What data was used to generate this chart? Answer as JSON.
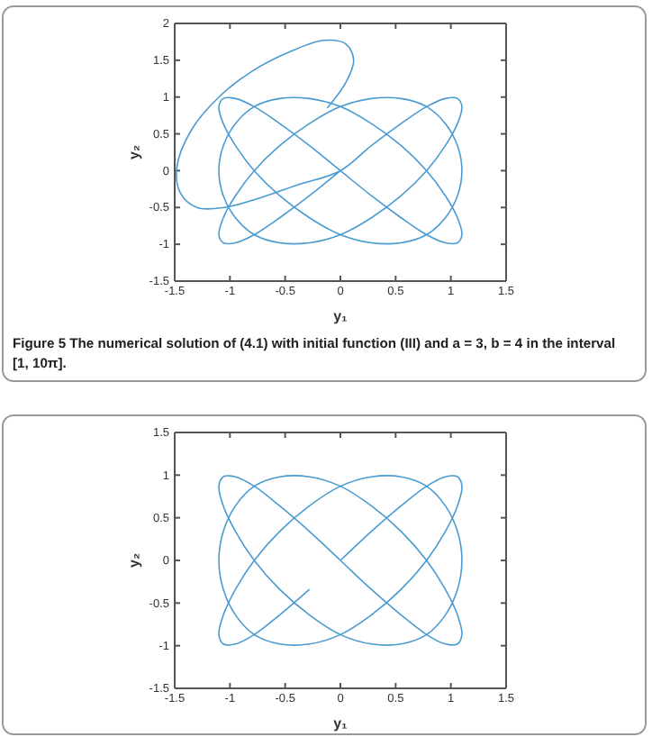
{
  "chart_data": [
    {
      "type": "line",
      "title": "Figure 5  The numerical solution of (4.1) with initial function (III) and a = 3, b = 4 in the interval [1, 10π].",
      "xlabel": "y₁",
      "ylabel": "y₂",
      "xlim": [
        -1.5,
        1.5
      ],
      "ylim": [
        -1.5,
        2
      ],
      "xticks": [
        -1.5,
        -1,
        -0.5,
        0,
        0.5,
        1,
        1.5
      ],
      "yticks": [
        -1.5,
        -1,
        -0.5,
        0,
        0.5,
        1,
        1.5,
        2
      ],
      "grid": false,
      "series": [
        {
          "color": "#4a9bd1",
          "x": [
            -0.12,
            0.05,
            0.12,
            0.05,
            -0.15,
            -0.45,
            -0.8,
            -1.1,
            -1.35,
            -1.48,
            -1.45,
            -1.3,
            -1.05,
            -0.75,
            -0.4,
            0,
            0.28,
            0.55,
            0.78,
            0.95,
            1.06,
            1.1,
            1.06,
            0.95,
            0.78,
            0.55,
            0.28,
            0,
            -0.28,
            -0.55,
            -0.78,
            -0.95,
            -1.06,
            -1.1,
            -1.06,
            -0.95,
            -0.78,
            -0.55,
            -0.28,
            0,
            0.28,
            0.55,
            0.78,
            0.95,
            1.06,
            1.1,
            1.06,
            0.95,
            0.78,
            0.55,
            0.28,
            0,
            -0.28,
            -0.55,
            -0.78,
            -0.95,
            -1.06,
            -1.1,
            -1.06,
            -0.95,
            -0.78,
            -0.55,
            -0.28,
            0,
            0.28,
            0.55,
            0.78,
            0.95,
            1.06,
            1.1,
            1.06,
            0.95,
            0.78,
            0.55,
            0.28,
            0,
            -0.28,
            -0.55,
            -0.78,
            -0.95,
            -1.06,
            -1.1,
            -1.06,
            -0.95,
            -0.78,
            -0.55,
            -0.28,
            0
          ],
          "values": [
            0.85,
            1.2,
            1.5,
            1.72,
            1.77,
            1.62,
            1.35,
            1.0,
            0.55,
            0.05,
            -0.3,
            -0.5,
            -0.5,
            -0.38,
            -0.2,
            0,
            0.34,
            0.64,
            0.87,
            0.98,
            0.98,
            0.87,
            0.64,
            0.34,
            0,
            -0.34,
            -0.64,
            -0.87,
            -0.98,
            -0.98,
            -0.87,
            -0.64,
            -0.34,
            0,
            0.34,
            0.64,
            0.87,
            0.98,
            0.98,
            0.87,
            0.64,
            0.34,
            0,
            -0.34,
            -0.64,
            -0.87,
            -0.98,
            -0.98,
            -0.87,
            -0.64,
            -0.34,
            0,
            0.34,
            0.64,
            0.87,
            0.98,
            0.98,
            0.87,
            0.64,
            0.34,
            0,
            -0.34,
            -0.64,
            -0.87,
            -0.98,
            -0.98,
            -0.87,
            -0.64,
            -0.34,
            0,
            0.34,
            0.64,
            0.87,
            0.98,
            0.98,
            0.87,
            0.64,
            0.34,
            0,
            -0.34,
            -0.64,
            -0.87,
            -0.98,
            -0.98,
            -0.87,
            -0.64,
            -0.34,
            0
          ]
        }
      ]
    },
    {
      "type": "line",
      "xlabel": "y₁",
      "ylabel": "y₂",
      "xlim": [
        -1.5,
        1.5
      ],
      "ylim": [
        -1.5,
        1.5
      ],
      "xticks": [
        -1.5,
        -1,
        -0.5,
        0,
        0.5,
        1,
        1.5
      ],
      "yticks": [
        -1.5,
        -1,
        -0.5,
        0,
        0.5,
        1,
        1.5
      ],
      "grid": false,
      "series": [
        {
          "color": "#4a9bd1",
          "x": [
            0,
            0.28,
            0.55,
            0.78,
            0.95,
            1.06,
            1.1,
            1.06,
            0.95,
            0.78,
            0.55,
            0.28,
            0,
            -0.28,
            -0.55,
            -0.78,
            -0.95,
            -1.06,
            -1.1,
            -1.06,
            -0.95,
            -0.78,
            -0.55,
            -0.28,
            0,
            0.28,
            0.55,
            0.78,
            0.95,
            1.06,
            1.1,
            1.06,
            0.95,
            0.78,
            0.55,
            0.28,
            0,
            -0.28,
            -0.55,
            -0.78,
            -0.95,
            -1.06,
            -1.1,
            -1.06,
            -0.95,
            -0.78,
            -0.55,
            -0.28,
            0,
            0.28,
            0.55,
            0.78,
            0.95,
            1.06,
            1.1,
            1.06,
            0.95,
            0.78,
            0.55,
            0.28,
            0,
            -0.28,
            -0.55,
            -0.78,
            -0.95,
            -1.06,
            -1.1,
            -1.06,
            -0.95,
            -0.78,
            -0.55,
            -0.28
          ],
          "values": [
            0,
            0.34,
            0.64,
            0.87,
            0.98,
            0.98,
            0.87,
            0.64,
            0.34,
            0,
            -0.34,
            -0.64,
            -0.87,
            -0.98,
            -0.98,
            -0.87,
            -0.64,
            -0.34,
            0,
            0.34,
            0.64,
            0.87,
            0.98,
            0.98,
            0.87,
            0.64,
            0.34,
            0,
            -0.34,
            -0.64,
            -0.87,
            -0.98,
            -0.98,
            -0.87,
            -0.64,
            -0.34,
            0,
            0.34,
            0.64,
            0.87,
            0.98,
            0.98,
            0.87,
            0.64,
            0.34,
            0,
            -0.34,
            -0.64,
            -0.87,
            -0.98,
            -0.98,
            -0.87,
            -0.64,
            -0.34,
            0,
            0.34,
            0.64,
            0.87,
            0.98,
            0.98,
            0.87,
            0.64,
            0.34,
            0,
            -0.34,
            -0.64,
            -0.87,
            -0.98,
            -0.98,
            -0.87,
            -0.64,
            -0.34
          ]
        }
      ]
    }
  ]
}
